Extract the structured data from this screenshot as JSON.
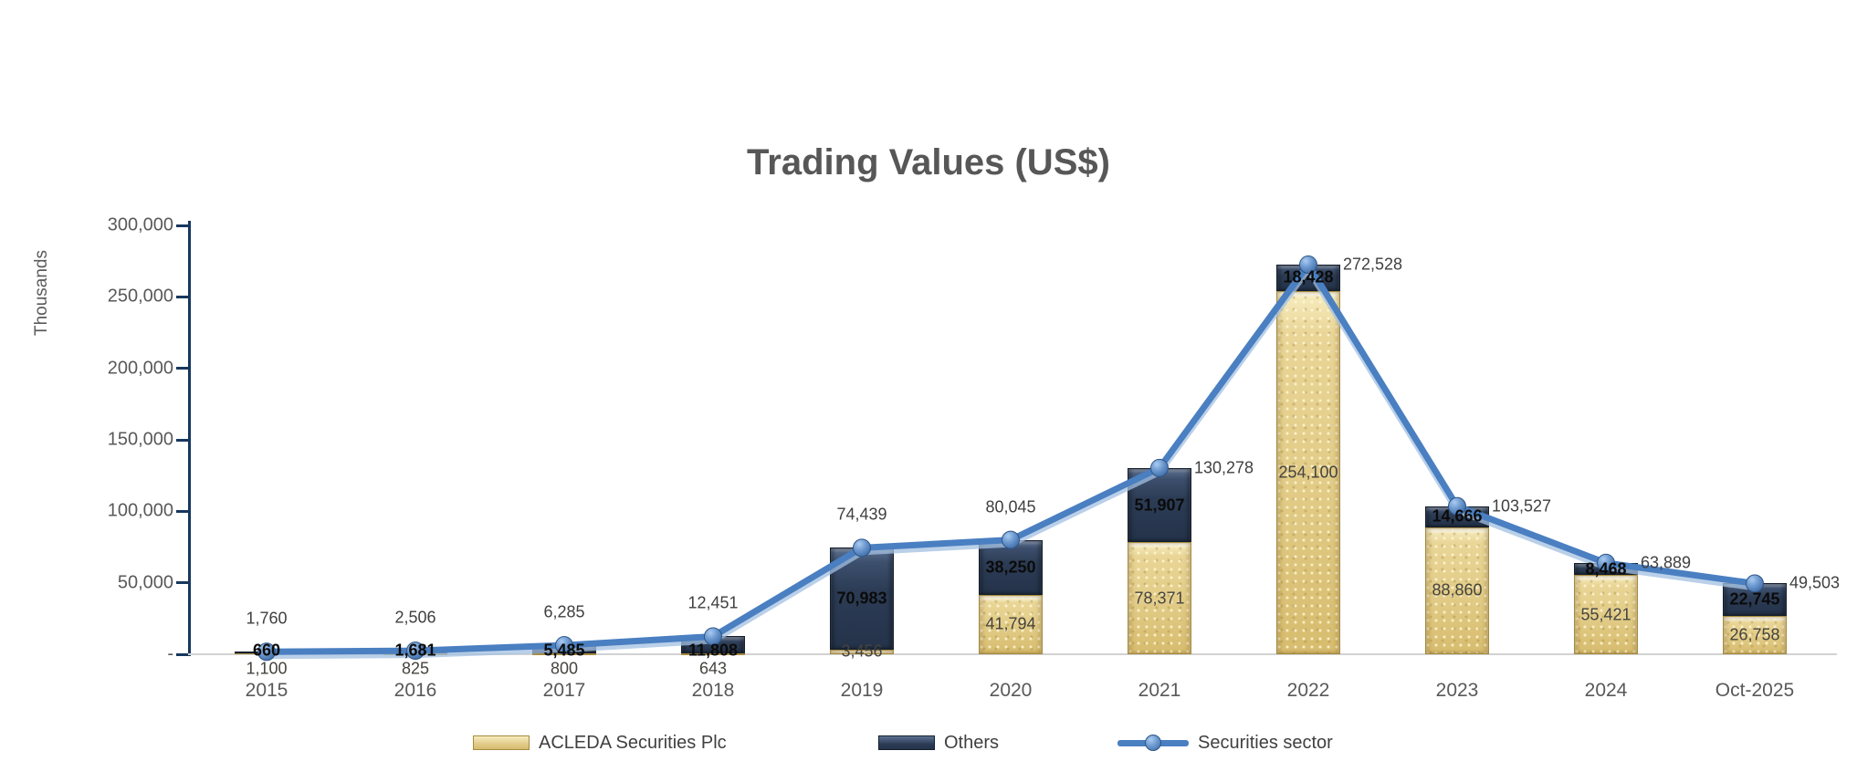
{
  "title": "Trading Values (US$)",
  "y_axis": {
    "unit_label": "Thousands",
    "tick_labels": [
      "300,000",
      "250,000",
      "200,000",
      "150,000",
      "100,000",
      "50,000",
      "-"
    ],
    "max": 300000
  },
  "legend": {
    "items": [
      {
        "label": "ACLEDA Securities Plc",
        "swatch": "gold-bar-swatch"
      },
      {
        "label": "Others",
        "swatch": "navy-bar-swatch"
      },
      {
        "label": "Securities sector",
        "swatch": "blue-line-marker-swatch"
      }
    ]
  },
  "colors": {
    "acleda_gold": "#e2cd8c",
    "others_navy": "#2b3a50",
    "line_blue": "#4a7fc1",
    "axis_navy": "#17375e",
    "title_gray": "#575757"
  },
  "chart_data": {
    "type": "combo: stacked bar + line",
    "title": "Trading Values (US$)",
    "ylabel": "Thousands",
    "ylim": [
      0,
      300000
    ],
    "grid": false,
    "legend_position": "bottom",
    "categories": [
      "2015",
      "2016",
      "2017",
      "2018",
      "2019",
      "2020",
      "2021",
      "2022",
      "2023",
      "2024",
      "Oct-2025"
    ],
    "series": [
      {
        "name": "ACLEDA Securities Plc",
        "type": "stacked-bar",
        "color": "#e2cd8c",
        "values": [
          1100,
          825,
          800,
          643,
          3456,
          41794,
          78371,
          254100,
          88860,
          55421,
          26758
        ]
      },
      {
        "name": "Others",
        "type": "stacked-bar",
        "color": "#2b3a50",
        "values": [
          660,
          1681,
          5485,
          11808,
          70983,
          38250,
          51907,
          18428,
          14666,
          8468,
          22745
        ]
      },
      {
        "name": "Securities sector",
        "type": "line",
        "color": "#4a7fc1",
        "values": [
          1760,
          2506,
          6285,
          12451,
          74439,
          80045,
          130278,
          272528,
          103527,
          63889,
          49503
        ]
      }
    ]
  }
}
